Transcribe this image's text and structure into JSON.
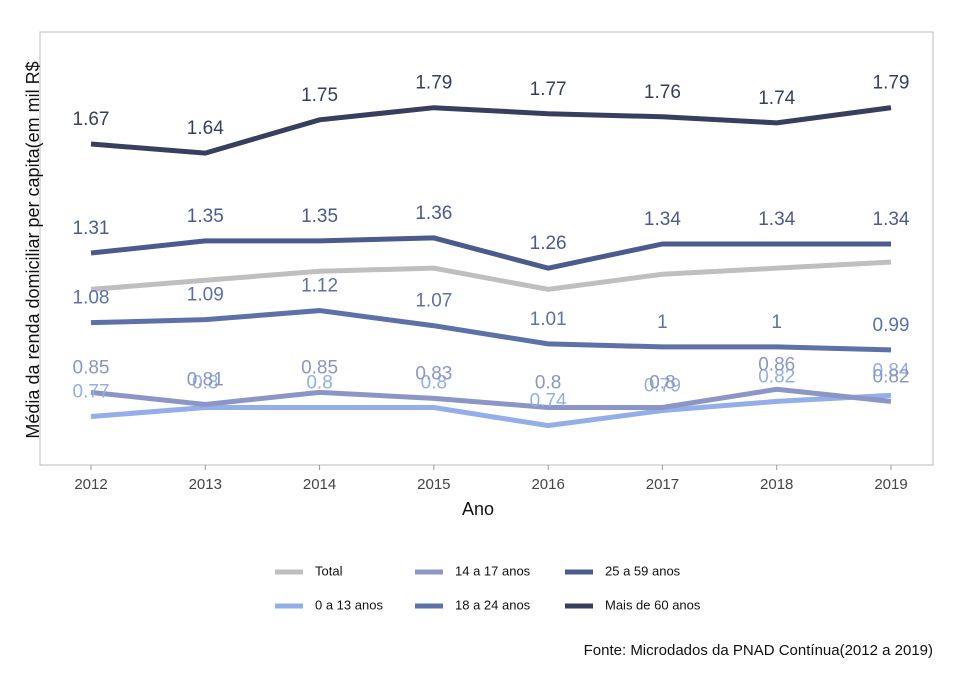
{
  "chart_data": {
    "type": "line",
    "x_label": "Ano",
    "y_label": "Média da renda domiciliar per capita(em mil R$",
    "categories": [
      "2012",
      "2013",
      "2014",
      "2015",
      "2016",
      "2017",
      "2018",
      "2019"
    ],
    "ylim": [
      0.61,
      2.04
    ],
    "series": [
      {
        "name": "Total",
        "color": "#bfbfbf",
        "values": [
          1.19,
          1.22,
          1.25,
          1.26,
          1.19,
          1.24,
          1.26,
          1.28
        ],
        "labels": false
      },
      {
        "name": "0 a 13 anos",
        "color": "#93aee8",
        "values": [
          0.77,
          0.8,
          0.8,
          0.8,
          0.74,
          0.79,
          0.82,
          0.84
        ],
        "labels": true
      },
      {
        "name": "14 a 17 anos",
        "color": "#8c96c6",
        "values": [
          0.85,
          0.81,
          0.85,
          0.83,
          0.8,
          0.8,
          0.86,
          0.82
        ],
        "labels": true
      },
      {
        "name": "18 a 24 anos",
        "color": "#5d70a8",
        "values": [
          1.08,
          1.09,
          1.12,
          1.07,
          1.01,
          1,
          1,
          0.99
        ],
        "labels": true
      },
      {
        "name": "25 a 59 anos",
        "color": "#4b5b8e",
        "values": [
          1.31,
          1.35,
          1.35,
          1.36,
          1.26,
          1.34,
          1.34,
          1.34
        ],
        "labels": true
      },
      {
        "name": "Mais de 60 anos",
        "color": "#363f5e",
        "values": [
          1.67,
          1.64,
          1.75,
          1.79,
          1.77,
          1.76,
          1.74,
          1.79
        ],
        "labels": true
      }
    ],
    "source": "Fonte: Microdados da PNAD Contínua(2012 a 2019)"
  }
}
